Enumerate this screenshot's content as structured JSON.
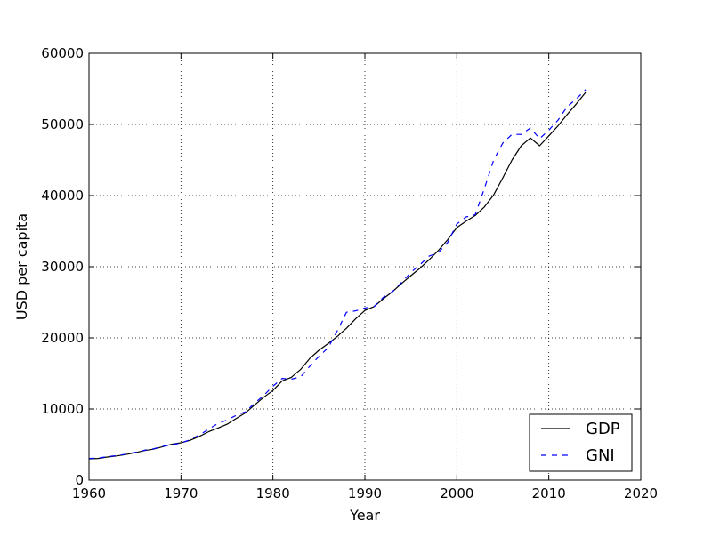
{
  "chart_data": {
    "type": "line",
    "title": "",
    "xlabel": "Year",
    "ylabel": "USD per capita",
    "xlim": [
      1960,
      2020
    ],
    "ylim": [
      0,
      60000
    ],
    "xticks": [
      1960,
      1970,
      1980,
      1990,
      2000,
      2010,
      2020
    ],
    "yticks": [
      0,
      10000,
      20000,
      30000,
      40000,
      50000,
      60000
    ],
    "grid": true,
    "legend_position": "lower-right",
    "x": [
      1960,
      1961,
      1962,
      1963,
      1964,
      1965,
      1966,
      1967,
      1968,
      1969,
      1970,
      1971,
      1972,
      1973,
      1974,
      1975,
      1976,
      1977,
      1978,
      1979,
      1980,
      1981,
      1982,
      1983,
      1984,
      1985,
      1986,
      1987,
      1988,
      1989,
      1990,
      1991,
      1992,
      1993,
      1994,
      1995,
      1996,
      1997,
      1998,
      1999,
      2000,
      2001,
      2002,
      2003,
      2004,
      2005,
      2006,
      2007,
      2008,
      2009,
      2010,
      2011,
      2012,
      2013,
      2014
    ],
    "series": [
      {
        "name": "GDP",
        "style": "solid",
        "color": "#000000",
        "values": [
          3000,
          3050,
          3250,
          3400,
          3600,
          3850,
          4150,
          4350,
          4700,
          5050,
          5250,
          5600,
          6150,
          6800,
          7300,
          7850,
          8650,
          9450,
          10550,
          11650,
          12600,
          13950,
          14450,
          15550,
          17100,
          18250,
          19200,
          20200,
          21350,
          22700,
          23850,
          24400,
          25500,
          26500,
          27650,
          28750,
          29800,
          31000,
          32300,
          33800,
          35500,
          36400,
          37200,
          38400,
          40100,
          42500,
          45000,
          47000,
          48100,
          47000,
          48400,
          49800,
          51400,
          52900,
          54500
        ]
      },
      {
        "name": "GNI",
        "style": "dashed",
        "color": "#0000ff",
        "values": [
          3050,
          3100,
          3300,
          3450,
          3650,
          3900,
          4200,
          4400,
          4750,
          5000,
          5200,
          5700,
          6350,
          7150,
          7950,
          8450,
          9100,
          9600,
          10800,
          11900,
          13200,
          14300,
          14200,
          14500,
          16000,
          17400,
          18600,
          21000,
          23600,
          23800,
          24200,
          24400,
          25700,
          26500,
          27800,
          29200,
          30300,
          31500,
          32000,
          33400,
          36000,
          37000,
          37300,
          41000,
          45000,
          47400,
          48600,
          48600,
          49500,
          48000,
          49200,
          50600,
          52500,
          53600,
          54900
        ]
      }
    ]
  }
}
